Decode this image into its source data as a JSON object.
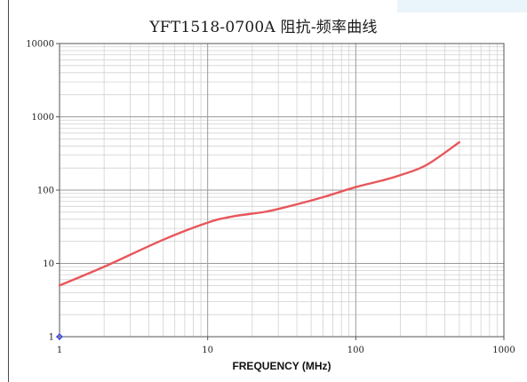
{
  "chart_data": {
    "type": "line",
    "title": "YFT1518-0700A 阻抗-频率曲线",
    "xlabel": "FREQUENCY (MHz)",
    "ylabel": "",
    "x_scale": "log",
    "y_scale": "log",
    "xlim": [
      1,
      1000
    ],
    "ylim": [
      1,
      10000
    ],
    "x_ticks": [
      1,
      10,
      100,
      1000
    ],
    "x_tick_labels": [
      "1",
      "10",
      "100",
      "1000"
    ],
    "y_ticks": [
      1,
      10,
      100,
      1000,
      10000
    ],
    "y_tick_labels": [
      "1",
      "10",
      "100",
      "1000",
      "10000"
    ],
    "grid": true,
    "line_color": "#e8565a",
    "origin_marker_color": "#2b3cff",
    "series": [
      {
        "x": [
          1,
          2,
          5,
          10,
          15,
          25,
          40,
          60,
          100,
          150,
          200,
          300,
          500
        ],
        "y": [
          5,
          9,
          21,
          36,
          44,
          51,
          64,
          80,
          110,
          135,
          160,
          220,
          450
        ]
      }
    ]
  }
}
